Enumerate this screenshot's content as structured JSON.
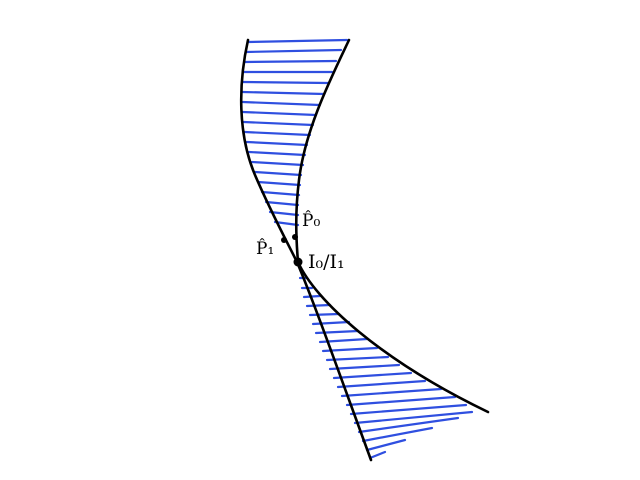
{
  "colors": {
    "hatch": "#2f4fe0",
    "outline": "#000000",
    "background": "#ffffff"
  },
  "labels": {
    "p0": "P̂₀",
    "p1": "P̂₁",
    "intersection": "I₀/I₁"
  }
}
